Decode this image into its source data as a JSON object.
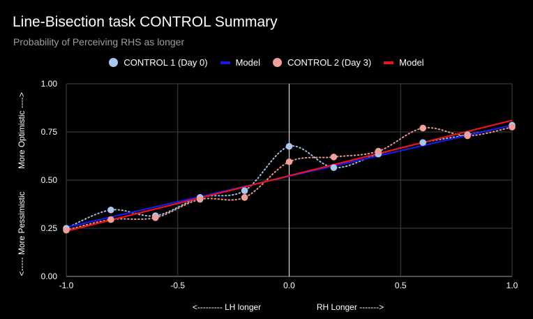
{
  "title": "Line-Bisection task CONTROL Summary",
  "subtitle": "Probability of Perceiving RHS as longer",
  "legend": [
    {
      "label": "CONTROL 1 (Day 0)",
      "kind": "dot",
      "color": "#a8c8ec"
    },
    {
      "label": "Model",
      "kind": "line",
      "color": "#1a1ae6"
    },
    {
      "label": "CONTROL 2 (Day 3)",
      "kind": "dot",
      "color": "#f0a09a"
    },
    {
      "label": "Model",
      "kind": "line",
      "color": "#e8141e"
    }
  ],
  "chart_data": {
    "type": "scatter",
    "title": "Line-Bisection task CONTROL Summary",
    "subtitle": "Probability of Perceiving RHS as longer",
    "xlabel_left": "<--------- LH longer",
    "xlabel_right": "RH Longer ------->",
    "ylabel_top": "More Optimistic ---->",
    "ylabel_bottom": "<----- More Pessimistic",
    "xlim": [
      -1.0,
      1.0
    ],
    "ylim": [
      0.0,
      1.0
    ],
    "x_ticks": [
      "-1.0",
      "-0.5",
      "0.0",
      "0.5",
      "1.0"
    ],
    "x_tick_values": [
      -1.0,
      -0.5,
      0.0,
      0.5,
      1.0
    ],
    "y_ticks": [
      "0.00",
      "0.25",
      "0.50",
      "0.75",
      "1.00"
    ],
    "y_tick_values": [
      0.0,
      0.25,
      0.5,
      0.75,
      1.0
    ],
    "grid": true,
    "series": [
      {
        "name": "CONTROL 1 (Day 0)",
        "kind": "points",
        "color": "#a8c8ec",
        "x": [
          -1.0,
          -0.8,
          -0.6,
          -0.4,
          -0.2,
          0.0,
          0.2,
          0.4,
          0.6,
          0.8,
          1.0
        ],
        "y": [
          0.25,
          0.345,
          0.315,
          0.41,
          0.445,
          0.675,
          0.565,
          0.635,
          0.695,
          0.735,
          0.785
        ]
      },
      {
        "name": "Model",
        "kind": "line",
        "color": "#1a1ae6",
        "x": [
          -1.0,
          1.0
        ],
        "y": [
          0.255,
          0.785
        ]
      },
      {
        "name": "CONTROL 2 (Day 3)",
        "kind": "points",
        "color": "#f0a09a",
        "x": [
          -1.0,
          -0.8,
          -0.6,
          -0.4,
          -0.2,
          0.0,
          0.2,
          0.4,
          0.6,
          0.8,
          1.0
        ],
        "y": [
          0.24,
          0.295,
          0.305,
          0.4,
          0.41,
          0.595,
          0.62,
          0.65,
          0.77,
          0.73,
          0.775
        ]
      },
      {
        "name": "Model",
        "kind": "line",
        "color": "#e8141e",
        "x": [
          -1.0,
          1.0
        ],
        "y": [
          0.235,
          0.81
        ]
      }
    ]
  }
}
